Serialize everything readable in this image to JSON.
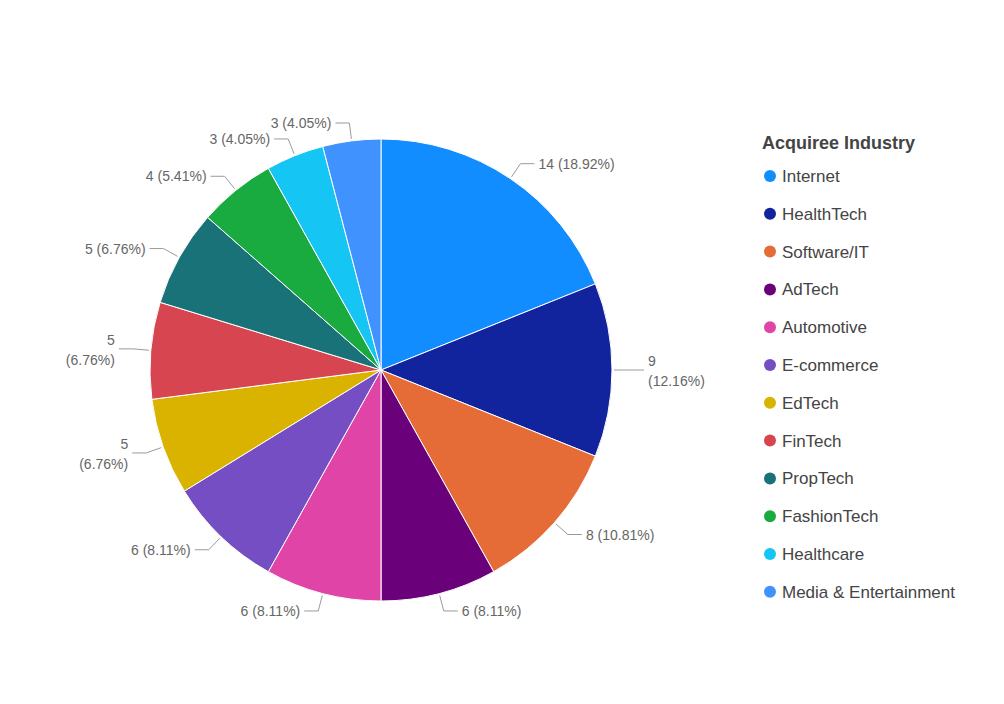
{
  "chart_data": {
    "type": "pie",
    "legend_title": "Acquiree Industry",
    "categories": [
      "Internet",
      "HealthTech",
      "Software/IT",
      "AdTech",
      "Automotive",
      "E-commerce",
      "EdTech",
      "FinTech",
      "PropTech",
      "FashionTech",
      "Healthcare",
      "Media & Entertainment"
    ],
    "values": [
      14,
      9,
      8,
      6,
      6,
      6,
      5,
      5,
      5,
      4,
      3,
      3
    ],
    "value_labels": [
      "14 (18.92%)",
      "9 (12.16%)",
      "8 (10.81%)",
      "6 (8.11%)",
      "6 (8.11%)",
      "6 (8.11%)",
      "5 (6.76%)",
      "5 (6.76%)",
      "5 (6.76%)",
      "4 (5.41%)",
      "3 (4.05%)",
      "3 (4.05%)"
    ],
    "colors": [
      "#118DFF",
      "#12239E",
      "#E66C37",
      "#6B007B",
      "#E044A7",
      "#744EC2",
      "#D9B300",
      "#D64550",
      "#197278",
      "#1AAB40",
      "#15C6F4",
      "#4092FF"
    ],
    "data_labels": true,
    "legend": "right"
  }
}
